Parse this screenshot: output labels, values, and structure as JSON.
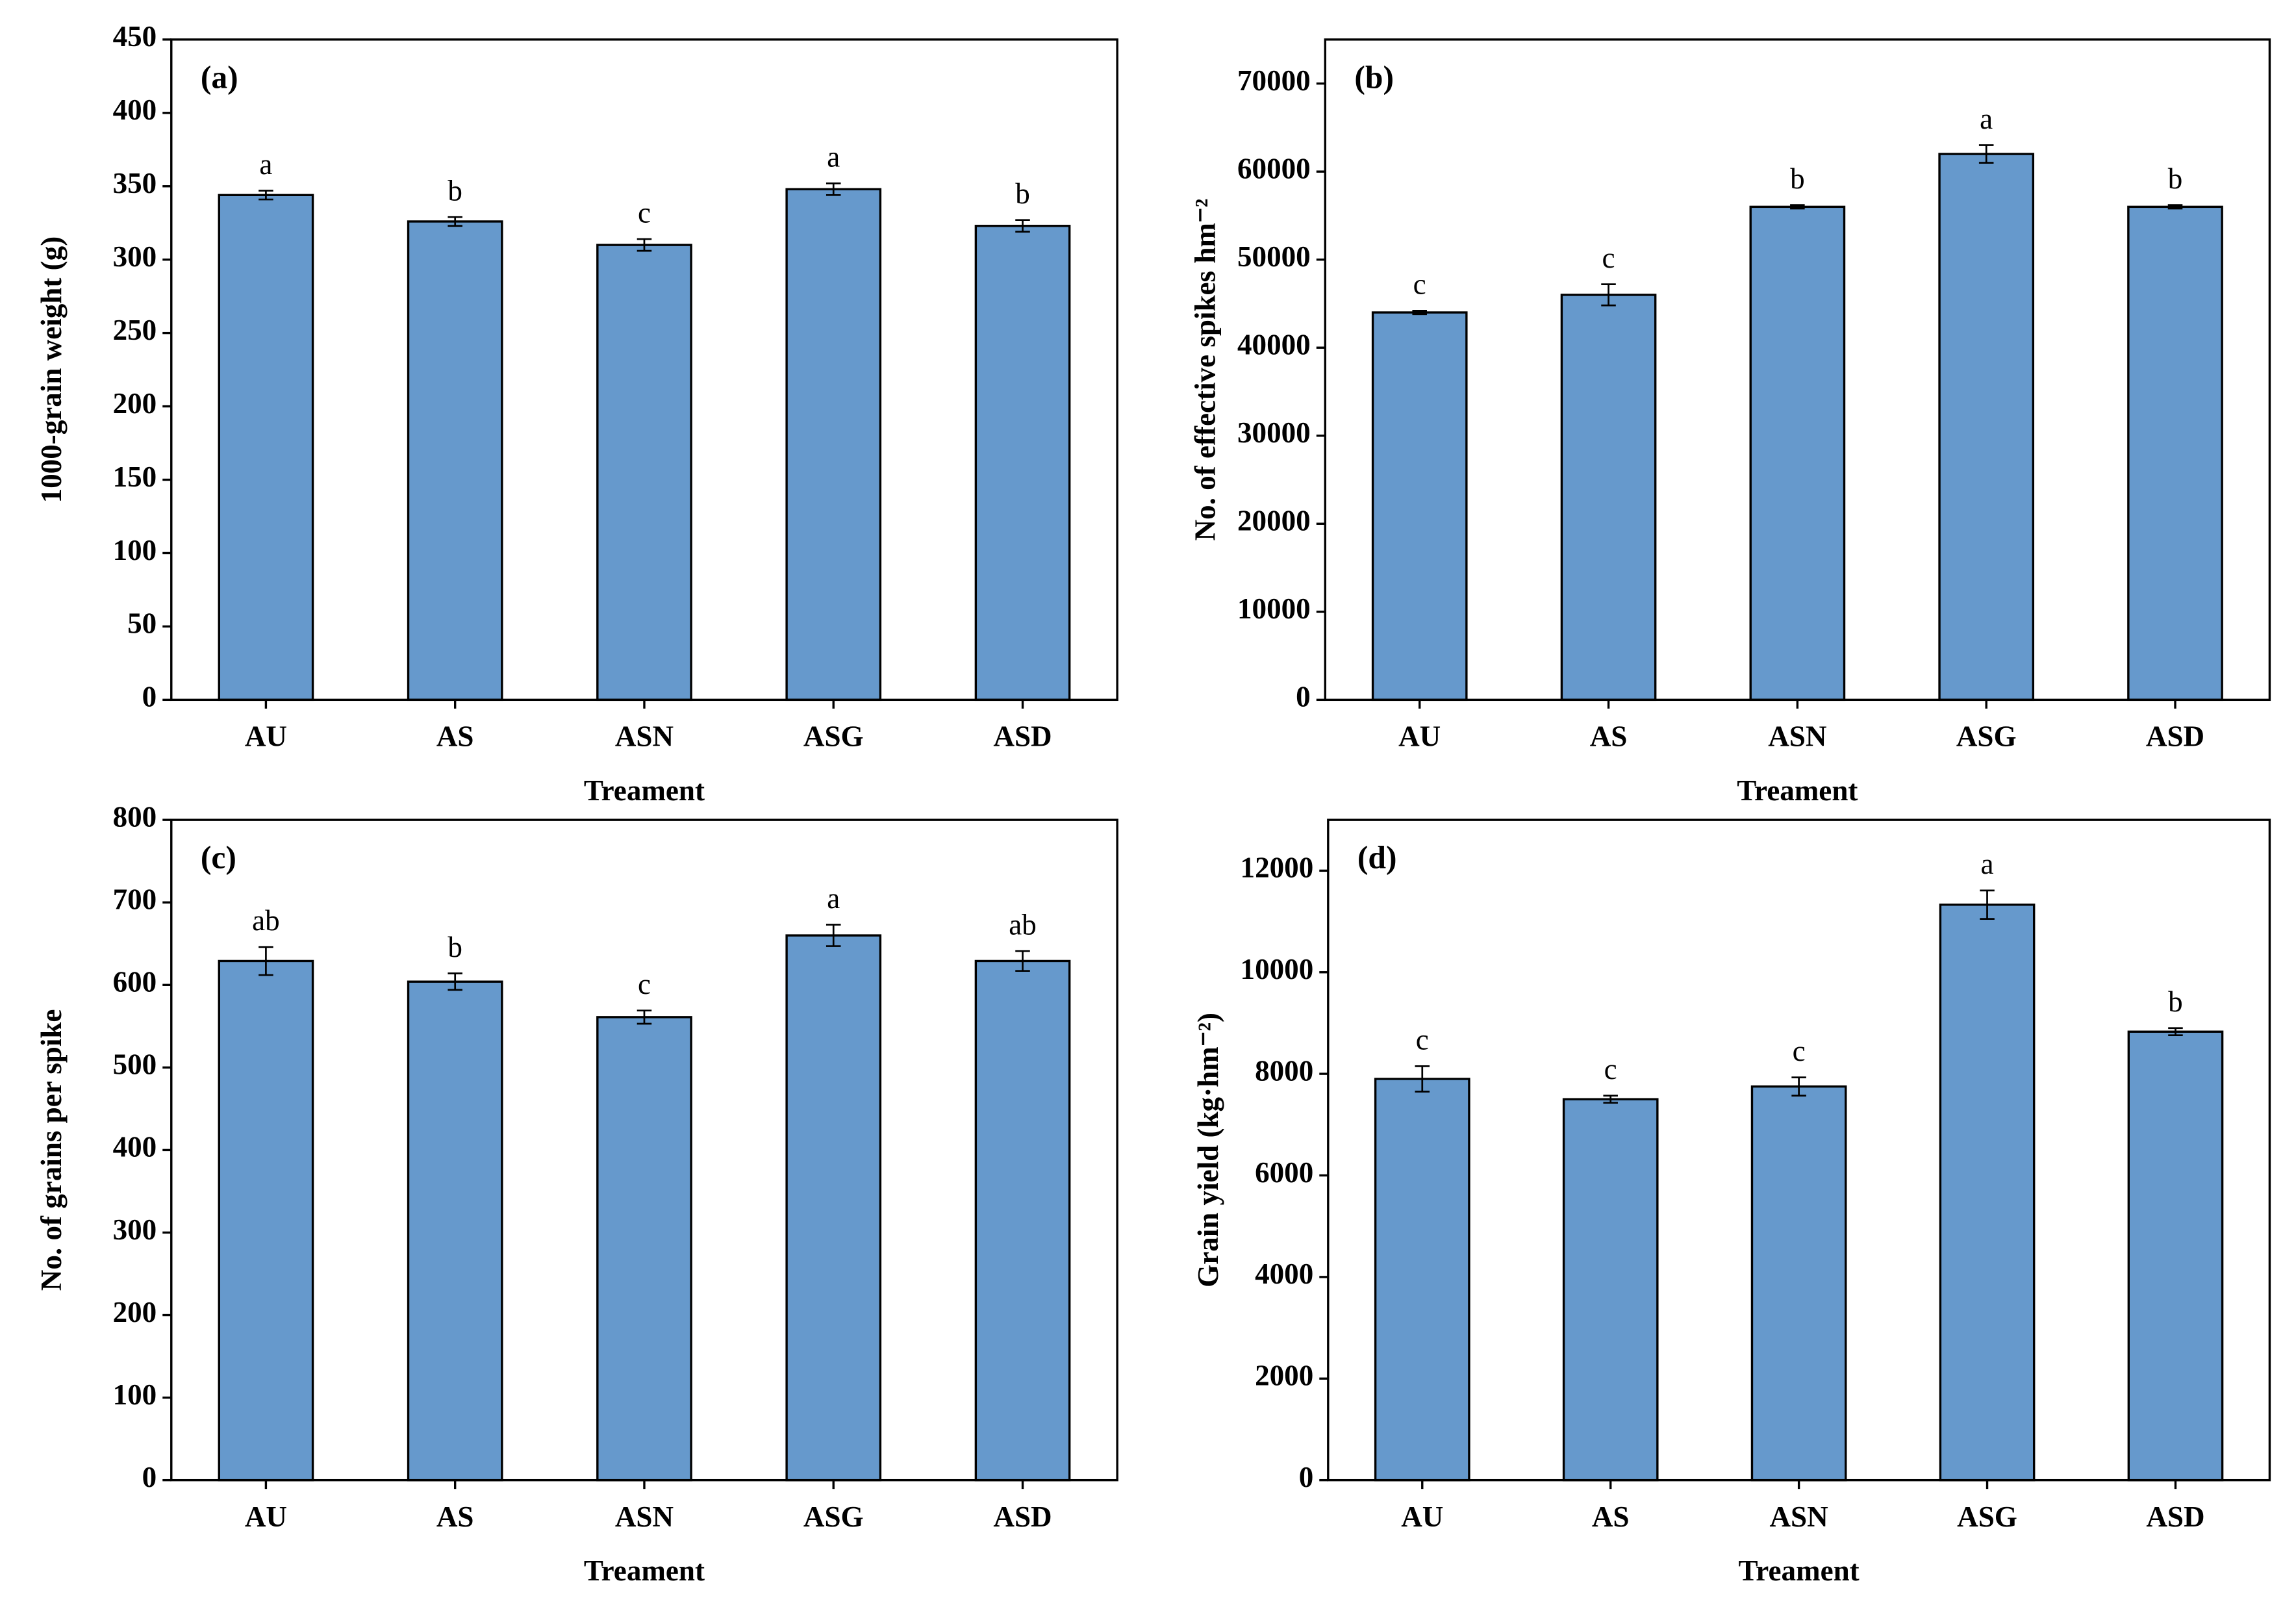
{
  "chart_data": [
    {
      "type": "bar",
      "title": "(a)",
      "y_label": "1000-grain weight (g)",
      "x_label": "Treament",
      "categories": [
        "AU",
        "AS",
        "ASN",
        "ASG",
        "ASD"
      ],
      "values": [
        344,
        326,
        310,
        348,
        323
      ],
      "errors": [
        3,
        3,
        4,
        4,
        4
      ],
      "annotations": [
        "a",
        "b",
        "c",
        "a",
        "b"
      ],
      "color": "#6699cc",
      "ylim": [
        0,
        450
      ],
      "yticks": [
        0,
        50,
        100,
        150,
        200,
        250,
        300,
        350,
        400,
        450
      ]
    },
    {
      "type": "bar",
      "title": "(b)",
      "y_label": "No. of effective spikes hm⁻²",
      "x_label": "Treament",
      "categories": [
        "AU",
        "AS",
        "ASN",
        "ASG",
        "ASD"
      ],
      "values": [
        44000,
        46000,
        56000,
        62000,
        56000
      ],
      "errors": [
        200,
        1200,
        200,
        1000,
        200
      ],
      "annotations": [
        "c",
        "c",
        "b",
        "a",
        "b"
      ],
      "color": "#6699cc",
      "ylim": [
        0,
        75000
      ],
      "yticks": [
        0,
        10000,
        20000,
        30000,
        40000,
        50000,
        60000,
        70000
      ]
    },
    {
      "type": "bar",
      "title": "(c)",
      "y_label": "No. of grains per spike",
      "x_label": "Treament",
      "categories": [
        "AU",
        "AS",
        "ASN",
        "ASG",
        "ASD"
      ],
      "values": [
        629,
        604,
        561,
        660,
        629
      ],
      "errors": [
        17,
        10,
        8,
        13,
        12
      ],
      "annotations": [
        "ab",
        "b",
        "c",
        "a",
        "ab"
      ],
      "color": "#6699cc",
      "ylim": [
        0,
        800
      ],
      "yticks": [
        0,
        100,
        200,
        300,
        400,
        500,
        600,
        700,
        800
      ]
    },
    {
      "type": "bar",
      "title": "(d)",
      "y_label": "Grain yield (kg·hm⁻²)",
      "x_label": "Treament",
      "categories": [
        "AU",
        "AS",
        "ASN",
        "ASG",
        "ASD"
      ],
      "values": [
        7900,
        7500,
        7750,
        11330,
        8830
      ],
      "errors": [
        250,
        70,
        180,
        280,
        70
      ],
      "annotations": [
        "c",
        "c",
        "c",
        "a",
        "b"
      ],
      "color": "#6699cc",
      "ylim": [
        0,
        13000
      ],
      "yticks": [
        0,
        2000,
        4000,
        6000,
        8000,
        10000,
        12000
      ]
    }
  ]
}
